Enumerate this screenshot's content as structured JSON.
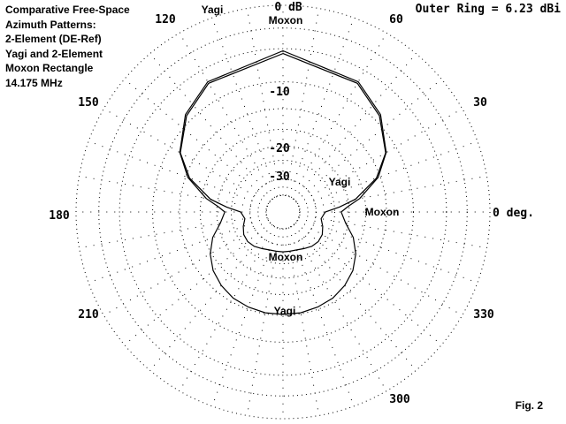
{
  "chart_data": {
    "type": "polar",
    "title_lines": [
      "Comparative Free-Space",
      "Azimuth Patterns:",
      "2-Element (DE-Ref)",
      "Yagi and 2-Element",
      "Moxon Rectangle",
      "14.175 MHz"
    ],
    "outer_ring_label": "Outer Ring = 6.23 dBi",
    "figure_label": "Fig. 2",
    "angle_labels": [
      {
        "deg": 0,
        "text": "0 deg."
      },
      {
        "deg": 30,
        "text": "30"
      },
      {
        "deg": 60,
        "text": "60"
      },
      {
        "deg": 120,
        "text": "120"
      },
      {
        "deg": 150,
        "text": "150"
      },
      {
        "deg": 180,
        "text": "180"
      },
      {
        "deg": 210,
        "text": "210"
      },
      {
        "deg": 300,
        "text": "300"
      },
      {
        "deg": 330,
        "text": "330"
      }
    ],
    "ring_labels": [
      {
        "db": 0,
        "text": "0 dB"
      },
      {
        "db": -10,
        "text": "-10"
      },
      {
        "db": -20,
        "text": "-20"
      },
      {
        "db": -30,
        "text": "-30"
      }
    ],
    "scale": {
      "ring_db": [
        0,
        -10,
        -20,
        -30
      ],
      "r_norm": [
        1.0,
        0.63,
        0.4,
        0.25
      ],
      "outer_ring_dbi": 6.23
    },
    "series": [
      {
        "name": "Yagi",
        "label_positions_note": "labels near main lobe, side and back lobe",
        "points": [
          [
            90,
            0.0
          ],
          [
            60,
            -1.2
          ],
          [
            45,
            -2.7
          ],
          [
            30,
            -5.2
          ],
          [
            20,
            -8.0
          ],
          [
            10,
            -12.5
          ],
          [
            5,
            -15.5
          ],
          [
            0,
            -17.5
          ],
          [
            350,
            -16.0
          ],
          [
            340,
            -13.2
          ],
          [
            330,
            -11.2
          ],
          [
            320,
            -9.8
          ],
          [
            310,
            -8.9
          ],
          [
            300,
            -8.3
          ],
          [
            290,
            -8.0
          ],
          [
            280,
            -7.8
          ],
          [
            270,
            -7.8
          ]
        ]
      },
      {
        "name": "Moxon",
        "points": [
          [
            90,
            -0.3
          ],
          [
            60,
            -1.4
          ],
          [
            45,
            -2.9
          ],
          [
            30,
            -5.3
          ],
          [
            20,
            -8.3
          ],
          [
            10,
            -13.5
          ],
          [
            5,
            -18.0
          ],
          [
            0,
            -23.0
          ],
          [
            350,
            -24.5
          ],
          [
            340,
            -23.0
          ],
          [
            330,
            -21.8
          ],
          [
            320,
            -21.5
          ],
          [
            310,
            -22.0
          ],
          [
            300,
            -23.0
          ],
          [
            290,
            -23.8
          ],
          [
            280,
            -24.0
          ],
          [
            270,
            -24.0
          ]
        ]
      }
    ],
    "curve_labels": [
      {
        "series": "Yagi",
        "text": "Yagi"
      },
      {
        "series": "Moxon",
        "text": "Moxon"
      },
      {
        "series": "Yagi",
        "text": "Yagi"
      },
      {
        "series": "Moxon",
        "text": "Moxon"
      },
      {
        "series": "Moxon",
        "text": "Moxon"
      },
      {
        "series": "Yagi",
        "text": "Yagi"
      }
    ]
  }
}
